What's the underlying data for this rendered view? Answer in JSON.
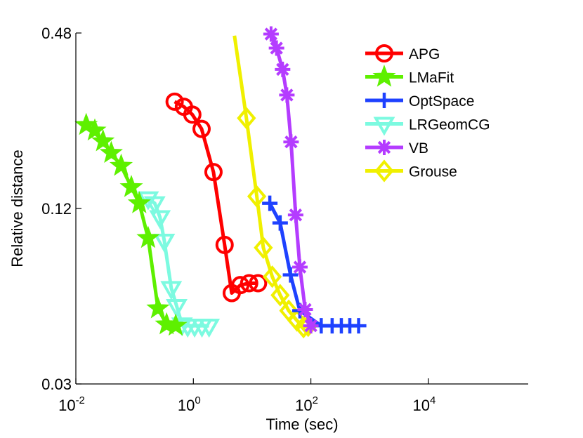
{
  "chart_data": {
    "type": "line",
    "xscale": "log",
    "yscale": "log",
    "xlim": [
      0.01,
      500000
    ],
    "ylim": [
      0.03,
      0.48
    ],
    "xlabel": "Time (sec)",
    "ylabel": "Relative distance",
    "xticks": [
      {
        "value": 0.01,
        "base": "10",
        "exp": "-2"
      },
      {
        "value": 1,
        "base": "10",
        "exp": "0"
      },
      {
        "value": 100,
        "base": "10",
        "exp": "2"
      },
      {
        "value": 10000,
        "base": "10",
        "exp": "4"
      }
    ],
    "yticks": [
      {
        "value": 0.03,
        "label": "0.03"
      },
      {
        "value": 0.12,
        "label": "0.12"
      },
      {
        "value": 0.48,
        "label": "0.48"
      }
    ],
    "legend_position": "top-right",
    "series": [
      {
        "name": "APG",
        "color": "#ff0000",
        "marker": "circle",
        "points": [
          [
            0.48,
            0.279
          ],
          [
            0.69,
            0.268
          ],
          [
            0.96,
            0.252
          ],
          [
            1.38,
            0.225
          ],
          [
            2.2,
            0.16
          ],
          [
            3.4,
            0.09
          ],
          [
            4.5,
            0.0615
          ],
          [
            6.3,
            0.0655
          ],
          [
            8.9,
            0.0665
          ],
          [
            12.6,
            0.0665
          ]
        ]
      },
      {
        "name": "LMaFit",
        "color": "#5ef000",
        "marker": "star",
        "points": [
          [
            0.015,
            0.232
          ],
          [
            0.021,
            0.222
          ],
          [
            0.029,
            0.204
          ],
          [
            0.04,
            0.186
          ],
          [
            0.059,
            0.168
          ],
          [
            0.088,
            0.142
          ],
          [
            0.12,
            0.125
          ],
          [
            0.17,
            0.095
          ],
          [
            0.25,
            0.0545
          ],
          [
            0.35,
            0.048
          ],
          [
            0.5,
            0.0475
          ]
        ]
      },
      {
        "name": "OptSpace",
        "color": "#1e41ff",
        "marker": "plus",
        "points": [
          [
            20,
            0.125
          ],
          [
            30,
            0.107
          ],
          [
            45,
            0.071
          ],
          [
            65,
            0.0535
          ],
          [
            150,
            0.0475
          ],
          [
            230,
            0.0475
          ],
          [
            330,
            0.0475
          ],
          [
            460,
            0.0475
          ],
          [
            650,
            0.0475
          ]
        ]
      },
      {
        "name": "LRGeomCG",
        "color": "#7cfae0",
        "marker": "triangle",
        "points": [
          [
            0.17,
            0.13
          ],
          [
            0.22,
            0.125
          ],
          [
            0.27,
            0.112
          ],
          [
            0.32,
            0.093
          ],
          [
            0.42,
            0.064
          ],
          [
            0.52,
            0.0555
          ],
          [
            0.64,
            0.048
          ],
          [
            0.8,
            0.0475
          ],
          [
            1.05,
            0.0475
          ],
          [
            1.4,
            0.0475
          ],
          [
            1.85,
            0.0475
          ]
        ]
      },
      {
        "name": "VB",
        "color": "#b43cff",
        "marker": "asterisk",
        "points": [
          [
            21,
            0.476
          ],
          [
            26,
            0.426
          ],
          [
            33,
            0.36
          ],
          [
            39,
            0.294
          ],
          [
            46,
            0.203
          ],
          [
            55,
            0.114
          ],
          [
            65,
            0.0755
          ],
          [
            80,
            0.054
          ],
          [
            100,
            0.0475
          ]
        ]
      },
      {
        "name": "Grouse",
        "color": "#f0f000",
        "marker": "diamond",
        "points": [
          [
            5,
            0.47
          ],
          [
            8,
            0.245
          ],
          [
            12,
            0.132
          ],
          [
            15.5,
            0.088
          ],
          [
            22,
            0.07
          ],
          [
            30,
            0.0605
          ],
          [
            42,
            0.0535
          ],
          [
            58,
            0.0495
          ],
          [
            75,
            0.047
          ],
          [
            90,
            0.0475
          ]
        ]
      }
    ]
  }
}
